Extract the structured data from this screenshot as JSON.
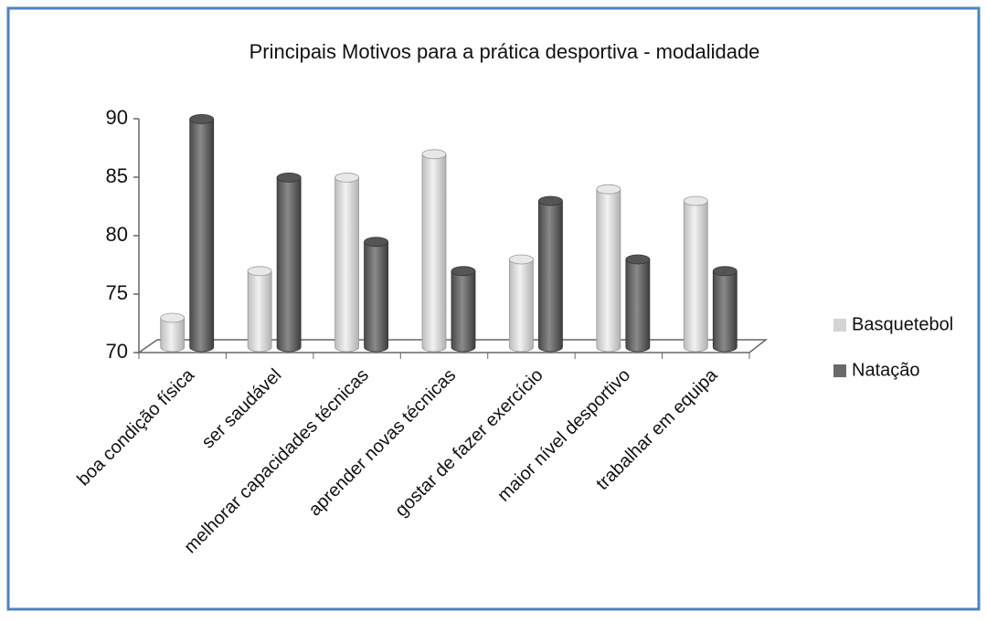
{
  "chart_data": {
    "type": "bar",
    "title": "Principais Motivos para a prática desportiva - modalidade",
    "categories": [
      "boa condição física",
      "ser saudável",
      "melhorar capacidades técnicas",
      "aprender novas técnicas",
      "gostar de fazer exercício",
      "maior nível desportivo",
      "trabalhar em equipa"
    ],
    "series": [
      {
        "name": "Basquetebol",
        "color": "#d4d4d4",
        "values": [
          72.5,
          76.5,
          84.5,
          86.5,
          77.5,
          83.5,
          82.5
        ]
      },
      {
        "name": "Natação",
        "color": "#6a6a6a",
        "values": [
          89.5,
          84.5,
          79,
          76.5,
          82.5,
          77.5,
          76.5
        ]
      }
    ],
    "ylim": [
      70,
      90
    ],
    "yticks": [
      70,
      75,
      80,
      85,
      90
    ],
    "legend": "right"
  }
}
